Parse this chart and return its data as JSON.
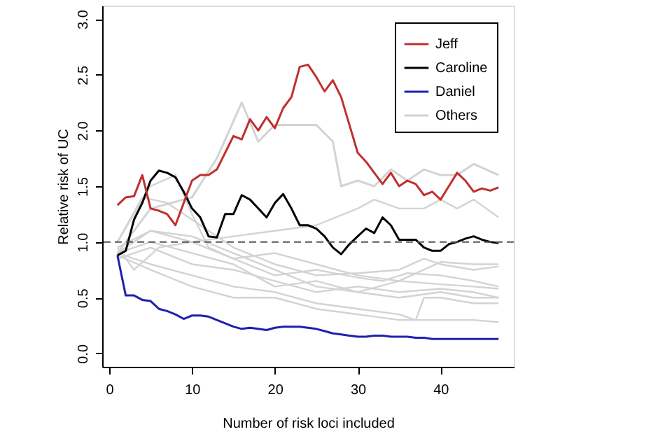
{
  "chart_data": {
    "type": "line",
    "xlabel": "Number of risk loci included",
    "ylabel": "Relative risk of UC",
    "xlim": [
      -0.84,
      48.84
    ],
    "xticks": [
      0,
      10,
      20,
      30,
      40
    ],
    "ylim": [
      -0.12,
      3.12
    ],
    "yticks": [
      {
        "value": 0,
        "label": "0.0"
      },
      {
        "value": 0.5,
        "label": "0.5"
      },
      {
        "value": 1,
        "label": "1.0"
      },
      {
        "value": 1.5,
        "label": "1.5"
      },
      {
        "value": 2,
        "label": "2.0"
      },
      {
        "value": 2.5,
        "label": "2.5"
      },
      {
        "value": 3,
        "label": "3.0"
      }
    ],
    "grid": false,
    "legend": "top right",
    "marker": "none",
    "line_style": "solid",
    "ref_lines": [
      {
        "axis": "y",
        "value": 1,
        "color": "#555555",
        "line_style": "dashed"
      }
    ],
    "series": [
      {
        "name": "Jeff",
        "color": "#c03030",
        "x": [
          1,
          2,
          3,
          4,
          5,
          6,
          7,
          8,
          9,
          10,
          11,
          12,
          13,
          14,
          15,
          16,
          17,
          18,
          19,
          20,
          21,
          22,
          23,
          24,
          25,
          26,
          27,
          28,
          29,
          30,
          31,
          32,
          33,
          34,
          35,
          36,
          37,
          38,
          39,
          40,
          41,
          42,
          43,
          44,
          45,
          46,
          47
        ],
        "values": [
          1.33,
          1.4,
          1.41,
          1.6,
          1.3,
          1.28,
          1.25,
          1.15,
          1.35,
          1.55,
          1.6,
          1.6,
          1.65,
          1.8,
          1.95,
          1.92,
          2.1,
          2.0,
          2.12,
          2.02,
          2.2,
          2.3,
          2.57,
          2.59,
          2.48,
          2.35,
          2.45,
          2.3,
          2.05,
          1.8,
          1.72,
          1.62,
          1.52,
          1.62,
          1.5,
          1.55,
          1.52,
          1.42,
          1.45,
          1.38,
          1.5,
          1.62,
          1.55,
          1.45,
          1.48,
          1.46,
          1.49
        ]
      },
      {
        "name": "Caroline",
        "color": "#000000",
        "x": [
          1,
          2,
          3,
          4,
          5,
          6,
          7,
          8,
          9,
          10,
          11,
          12,
          13,
          14,
          15,
          16,
          17,
          18,
          19,
          20,
          21,
          22,
          23,
          24,
          25,
          26,
          27,
          28,
          29,
          30,
          31,
          32,
          33,
          34,
          35,
          36,
          37,
          38,
          39,
          40,
          41,
          42,
          43,
          44,
          45,
          46,
          47
        ],
        "values": [
          0.88,
          0.92,
          1.2,
          1.35,
          1.55,
          1.64,
          1.62,
          1.58,
          1.45,
          1.3,
          1.22,
          1.05,
          1.04,
          1.25,
          1.25,
          1.42,
          1.38,
          1.3,
          1.22,
          1.35,
          1.43,
          1.3,
          1.15,
          1.15,
          1.12,
          1.05,
          0.95,
          0.89,
          0.98,
          1.05,
          1.12,
          1.08,
          1.22,
          1.15,
          1.02,
          1.02,
          1.02,
          0.95,
          0.92,
          0.92,
          0.98,
          1.0,
          1.03,
          1.05,
          1.02,
          1.0,
          0.99
        ]
      },
      {
        "name": "Daniel",
        "color": "#2020b0",
        "x": [
          1,
          2,
          3,
          4,
          5,
          6,
          7,
          8,
          9,
          10,
          11,
          12,
          13,
          14,
          15,
          16,
          17,
          18,
          19,
          20,
          21,
          22,
          23,
          24,
          25,
          26,
          27,
          28,
          29,
          30,
          31,
          32,
          33,
          34,
          35,
          36,
          37,
          38,
          39,
          40,
          41,
          42,
          43,
          44,
          45,
          46,
          47
        ],
        "values": [
          0.88,
          0.52,
          0.52,
          0.48,
          0.47,
          0.4,
          0.38,
          0.35,
          0.31,
          0.34,
          0.34,
          0.33,
          0.3,
          0.27,
          0.24,
          0.22,
          0.23,
          0.22,
          0.21,
          0.23,
          0.24,
          0.24,
          0.24,
          0.23,
          0.22,
          0.2,
          0.18,
          0.17,
          0.16,
          0.15,
          0.15,
          0.16,
          0.16,
          0.15,
          0.15,
          0.15,
          0.14,
          0.14,
          0.13,
          0.13,
          0.13,
          0.13,
          0.13,
          0.13,
          0.13,
          0.13,
          0.13
        ]
      },
      {
        "name": "Others",
        "color": "#d3d3d3",
        "x": [
          1,
          5,
          10,
          13,
          16,
          18,
          20,
          22,
          25,
          27,
          28,
          30,
          32,
          34,
          36,
          38,
          40,
          42,
          44,
          47
        ],
        "values": [
          0.9,
          1.3,
          1.4,
          1.75,
          2.25,
          1.9,
          2.05,
          2.05,
          2.05,
          1.9,
          1.5,
          1.55,
          1.5,
          1.65,
          1.55,
          1.65,
          1.6,
          1.6,
          1.7,
          1.6
        ]
      },
      {
        "color": "#d3d3d3",
        "x": [
          1,
          5,
          10,
          15,
          20,
          25,
          30,
          32,
          35,
          38,
          40,
          42,
          44,
          47
        ],
        "values": [
          0.95,
          1.1,
          1.0,
          1.05,
          1.1,
          1.15,
          1.3,
          1.38,
          1.3,
          1.3,
          1.38,
          1.3,
          1.38,
          1.22
        ]
      },
      {
        "color": "#d3d3d3",
        "x": [
          1,
          4,
          7,
          10,
          15,
          20,
          25,
          30,
          35,
          38,
          40,
          44,
          47
        ],
        "values": [
          1.0,
          1.4,
          1.35,
          1.2,
          0.95,
          0.8,
          0.7,
          0.72,
          0.75,
          0.85,
          0.8,
          0.75,
          0.78
        ]
      },
      {
        "color": "#d3d3d3",
        "x": [
          1,
          5,
          10,
          15,
          20,
          25,
          30,
          35,
          40,
          44,
          47
        ],
        "values": [
          0.9,
          1.0,
          0.9,
          0.8,
          0.6,
          0.65,
          0.55,
          0.65,
          0.82,
          0.8,
          0.8
        ]
      },
      {
        "color": "#d3d3d3",
        "x": [
          1,
          3,
          6,
          10,
          15,
          20,
          25,
          30,
          33,
          36,
          40,
          44,
          47
        ],
        "values": [
          0.95,
          0.75,
          0.95,
          1.0,
          0.85,
          0.7,
          0.75,
          0.68,
          0.65,
          0.72,
          0.7,
          0.65,
          0.6
        ]
      },
      {
        "color": "#d3d3d3",
        "x": [
          1,
          5,
          10,
          15,
          20,
          25,
          30,
          35,
          40,
          44,
          47
        ],
        "values": [
          0.85,
          0.95,
          0.8,
          0.75,
          0.65,
          0.55,
          0.6,
          0.55,
          0.58,
          0.55,
          0.5
        ]
      },
      {
        "color": "#d3d3d3",
        "x": [
          1,
          5,
          10,
          15,
          20,
          25,
          30,
          35,
          37,
          38,
          40,
          44,
          47
        ],
        "values": [
          0.9,
          0.8,
          0.7,
          0.6,
          0.55,
          0.45,
          0.4,
          0.35,
          0.3,
          0.5,
          0.5,
          0.45,
          0.45
        ]
      },
      {
        "color": "#d3d3d3",
        "x": [
          1,
          5,
          10,
          15,
          20,
          25,
          30,
          35,
          40,
          44,
          47
        ],
        "values": [
          0.88,
          0.75,
          0.6,
          0.5,
          0.5,
          0.4,
          0.35,
          0.3,
          0.3,
          0.3,
          0.28
        ]
      },
      {
        "color": "#d3d3d3",
        "x": [
          1,
          5,
          10,
          15,
          20,
          25,
          30,
          35,
          40,
          44,
          47
        ],
        "values": [
          0.9,
          1.1,
          1.05,
          0.9,
          0.75,
          0.6,
          0.55,
          0.5,
          0.55,
          0.5,
          0.5
        ]
      },
      {
        "color": "#d3d3d3",
        "x": [
          1,
          5,
          8,
          10,
          12,
          15,
          20,
          25,
          30,
          35,
          40,
          44,
          47
        ],
        "values": [
          1.0,
          1.5,
          1.6,
          1.25,
          0.95,
          0.85,
          0.9,
          0.8,
          0.7,
          0.65,
          0.62,
          0.6,
          0.58
        ]
      }
    ]
  }
}
